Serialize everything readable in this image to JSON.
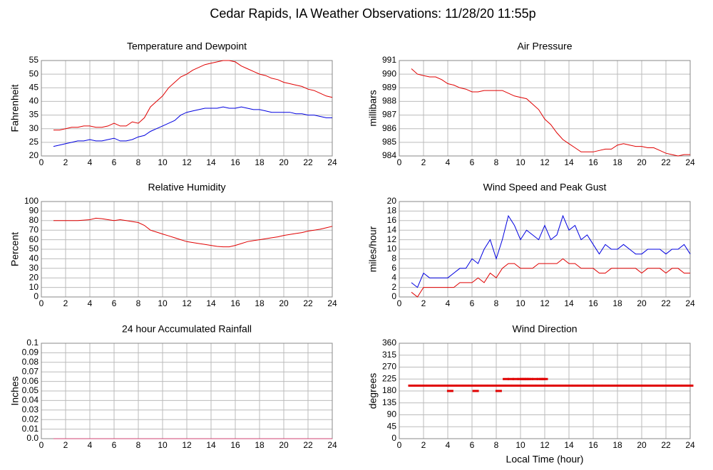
{
  "title": "Cedar Rapids, IA Weather Observations: 11/28/20 11:55p",
  "chart_data": [
    {
      "type": "line",
      "title": "Temperature and Dewpoint",
      "ylabel": "Fahrenheit",
      "x": [
        1,
        1.5,
        2,
        2.5,
        3,
        3.5,
        4,
        4.5,
        5,
        5.5,
        6,
        6.5,
        7,
        7.5,
        8,
        8.5,
        9,
        9.5,
        10,
        10.5,
        11,
        11.5,
        12,
        12.5,
        13,
        13.5,
        14,
        14.5,
        15,
        15.5,
        16,
        16.5,
        17,
        17.5,
        18,
        18.5,
        19,
        19.5,
        20,
        20.5,
        21,
        21.5,
        22,
        22.5,
        23,
        23.5,
        24
      ],
      "series": [
        {
          "color": "#e00000",
          "values": [
            29.5,
            29.5,
            30,
            30.5,
            30.5,
            31,
            31,
            30.5,
            30.5,
            31,
            32,
            31,
            31,
            32.5,
            32,
            34,
            38,
            40,
            42,
            45,
            47,
            49,
            50,
            51.5,
            52.5,
            53.5,
            54,
            54.5,
            55,
            55,
            54.5,
            53,
            52,
            51,
            50,
            49.5,
            48.5,
            48,
            47,
            46.5,
            46,
            45.5,
            44.5,
            44,
            43,
            42,
            41.5
          ]
        },
        {
          "color": "#0000e0",
          "values": [
            23.5,
            24,
            24.5,
            25,
            25.5,
            25.5,
            26,
            25.5,
            25.5,
            26,
            26.5,
            25.5,
            25.5,
            26,
            27,
            27.5,
            29,
            30,
            31,
            32,
            33,
            35,
            36,
            36.5,
            37,
            37.5,
            37.5,
            37.5,
            38,
            37.5,
            37.5,
            38,
            37.5,
            37,
            37,
            36.5,
            36,
            36,
            36,
            36,
            35.5,
            35.5,
            35,
            35,
            34.5,
            34,
            34
          ]
        }
      ],
      "xlim": [
        0,
        24
      ],
      "xticks": [
        0,
        2,
        4,
        6,
        8,
        10,
        12,
        14,
        16,
        18,
        20,
        22,
        24
      ],
      "ylim": [
        20,
        55
      ],
      "yticks": [
        20,
        25,
        30,
        35,
        40,
        45,
        50,
        55
      ],
      "grid": true
    },
    {
      "type": "line",
      "title": "Air Pressure",
      "ylabel": "millibars",
      "x": [
        1,
        1.5,
        2,
        2.5,
        3,
        3.5,
        4,
        4.5,
        5,
        5.5,
        6,
        6.5,
        7,
        7.5,
        8,
        8.5,
        9,
        9.5,
        10,
        10.5,
        11,
        11.5,
        12,
        12.5,
        13,
        13.5,
        14,
        14.5,
        15,
        15.5,
        16,
        16.5,
        17,
        17.5,
        18,
        18.5,
        19,
        19.5,
        20,
        20.5,
        21,
        21.5,
        22,
        22.5,
        23,
        23.5,
        24
      ],
      "series": [
        {
          "color": "#e00000",
          "values": [
            990.4,
            990,
            989.9,
            989.8,
            989.8,
            989.6,
            989.3,
            989.2,
            989,
            988.9,
            988.7,
            988.7,
            988.8,
            988.8,
            988.8,
            988.8,
            988.6,
            988.4,
            988.3,
            988.2,
            987.8,
            987.4,
            986.7,
            986.3,
            985.7,
            985.2,
            984.9,
            984.6,
            984.3,
            984.3,
            984.3,
            984.4,
            984.5,
            984.5,
            984.8,
            984.9,
            984.8,
            984.7,
            984.7,
            984.6,
            984.6,
            984.4,
            984.2,
            984.1,
            984,
            984.1,
            984.1
          ]
        }
      ],
      "xlim": [
        0,
        24
      ],
      "xticks": [
        0,
        2,
        4,
        6,
        8,
        10,
        12,
        14,
        16,
        18,
        20,
        22,
        24
      ],
      "ylim": [
        984,
        991
      ],
      "yticks": [
        984,
        985,
        986,
        987,
        988,
        989,
        990,
        991
      ],
      "grid": true
    },
    {
      "type": "line",
      "title": "Relative Humidity",
      "ylabel": "Percent",
      "x": [
        1,
        1.5,
        2,
        2.5,
        3,
        3.5,
        4,
        4.5,
        5,
        5.5,
        6,
        6.5,
        7,
        7.5,
        8,
        8.5,
        9,
        9.5,
        10,
        10.5,
        11,
        11.5,
        12,
        12.5,
        13,
        13.5,
        14,
        14.5,
        15,
        15.5,
        16,
        16.5,
        17,
        17.5,
        18,
        18.5,
        19,
        19.5,
        20,
        20.5,
        21,
        21.5,
        22,
        22.5,
        23,
        23.5,
        24
      ],
      "series": [
        {
          "color": "#e00000",
          "values": [
            80,
            80,
            80,
            80,
            80,
            80.5,
            81,
            82.5,
            82,
            81,
            80,
            81,
            80,
            79,
            78,
            75,
            70,
            68,
            66,
            64,
            62,
            60,
            58,
            57,
            56,
            55,
            54,
            53,
            52.5,
            52.5,
            54,
            56,
            58,
            59,
            60,
            61,
            62,
            63,
            64.5,
            65.5,
            66.5,
            67.5,
            69,
            70,
            71,
            72.5,
            74
          ]
        }
      ],
      "xlim": [
        0,
        24
      ],
      "xticks": [
        0,
        2,
        4,
        6,
        8,
        10,
        12,
        14,
        16,
        18,
        20,
        22,
        24
      ],
      "ylim": [
        0,
        100
      ],
      "yticks": [
        0,
        10,
        20,
        30,
        40,
        50,
        60,
        70,
        80,
        90,
        100
      ],
      "grid": true
    },
    {
      "type": "line",
      "title": "Wind Speed and Peak Gust",
      "ylabel": "miles/hour",
      "x": [
        1,
        1.5,
        2,
        2.5,
        3,
        3.5,
        4,
        4.5,
        5,
        5.5,
        6,
        6.5,
        7,
        7.5,
        8,
        8.5,
        9,
        9.5,
        10,
        10.5,
        11,
        11.5,
        12,
        12.5,
        13,
        13.5,
        14,
        14.5,
        15,
        15.5,
        16,
        16.5,
        17,
        17.5,
        18,
        18.5,
        19,
        19.5,
        20,
        20.5,
        21,
        21.5,
        22,
        22.5,
        23,
        23.5,
        24
      ],
      "series": [
        {
          "color": "#0000e0",
          "values": [
            3,
            2,
            5,
            4,
            4,
            4,
            4,
            5,
            6,
            6,
            8,
            7,
            10,
            12,
            8,
            12,
            17,
            15,
            12,
            14,
            13,
            12,
            15,
            12,
            13,
            17,
            14,
            15,
            12,
            13,
            11,
            9,
            11,
            10,
            10,
            11,
            10,
            9,
            9,
            10,
            10,
            10,
            9,
            10,
            10,
            11,
            9
          ]
        },
        {
          "color": "#e00000",
          "values": [
            1,
            0,
            2,
            2,
            2,
            2,
            2,
            2,
            3,
            3,
            3,
            4,
            3,
            5,
            4,
            6,
            7,
            7,
            6,
            6,
            6,
            7,
            7,
            7,
            7,
            8,
            7,
            7,
            6,
            6,
            6,
            5,
            5,
            6,
            6,
            6,
            6,
            6,
            5,
            6,
            6,
            6,
            5,
            6,
            6,
            5,
            5
          ]
        }
      ],
      "xlim": [
        0,
        24
      ],
      "xticks": [
        0,
        2,
        4,
        6,
        8,
        10,
        12,
        14,
        16,
        18,
        20,
        22,
        24
      ],
      "ylim": [
        0,
        20
      ],
      "yticks": [
        0,
        2,
        4,
        6,
        8,
        10,
        12,
        14,
        16,
        18,
        20
      ],
      "grid": true
    },
    {
      "type": "line",
      "title": "24 hour Accumulated Rainfall",
      "ylabel": "Inches",
      "x": [
        1,
        24
      ],
      "series": [
        {
          "color": "#d04070",
          "values": [
            0,
            0
          ]
        }
      ],
      "xlim": [
        0,
        24
      ],
      "xticks": [
        0,
        2,
        4,
        6,
        8,
        10,
        12,
        14,
        16,
        18,
        20,
        22,
        24
      ],
      "ylim": [
        0,
        0.1
      ],
      "yticks": [
        {
          "value": 0,
          "label": "0.0"
        },
        0.01,
        0.02,
        0.03,
        0.04,
        0.05,
        0.06,
        0.07,
        0.08,
        0.09,
        0.1
      ],
      "grid": true
    },
    {
      "type": "scatter",
      "title": "Wind Direction",
      "ylabel": "degrees",
      "xlabel": "Local Time (hour)",
      "x": [
        1,
        1.5,
        2,
        2.5,
        3,
        3.5,
        4,
        4.5,
        5,
        5.5,
        6,
        6.5,
        7,
        7.5,
        8,
        8.5,
        9,
        9.5,
        10,
        10.5,
        11,
        11.5,
        12,
        12.5,
        13,
        13.5,
        14,
        14.5,
        15,
        15.5,
        16,
        16.5,
        17,
        17.5,
        18,
        18.5,
        19,
        19.5,
        20,
        20.5,
        21,
        21.5,
        22,
        22.5,
        23,
        23.5,
        24,
        8.8,
        9.2,
        9.6,
        10,
        10.2,
        10.4,
        10.6,
        10.8,
        11.2,
        11.6,
        11.8,
        12,
        4.2,
        6.3,
        8.2
      ],
      "series": [
        {
          "color": "#e00000",
          "values": [
            200,
            200,
            200,
            200,
            200,
            200,
            200,
            200,
            200,
            200,
            200,
            200,
            200,
            200,
            200,
            200,
            200,
            200,
            200,
            200,
            200,
            200,
            200,
            200,
            200,
            200,
            200,
            200,
            200,
            200,
            200,
            200,
            200,
            200,
            200,
            200,
            200,
            200,
            200,
            200,
            200,
            200,
            200,
            200,
            200,
            200,
            200,
            225,
            225,
            225,
            225,
            225,
            225,
            225,
            225,
            225,
            225,
            225,
            225,
            180,
            180,
            180
          ]
        }
      ],
      "xlim": [
        0,
        24
      ],
      "xticks": [
        0,
        2,
        4,
        6,
        8,
        10,
        12,
        14,
        16,
        18,
        20,
        22,
        24
      ],
      "ylim": [
        0,
        360
      ],
      "yticks": [
        0,
        45,
        90,
        135,
        180,
        225,
        270,
        315,
        360
      ],
      "grid": true
    }
  ]
}
